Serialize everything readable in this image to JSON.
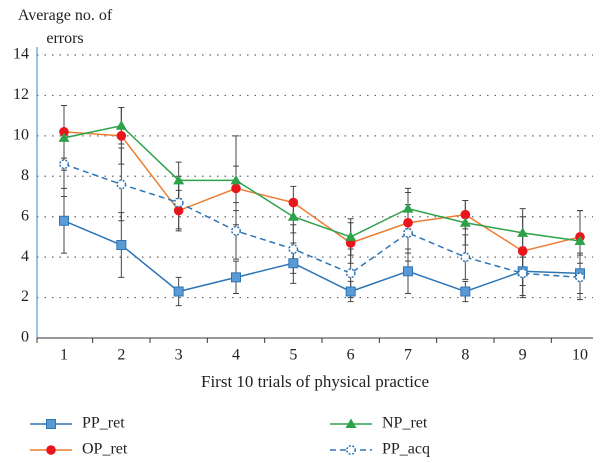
{
  "chart_data": {
    "type": "line",
    "y_label": "Average no. of errors",
    "x_label": "First 10 trials of physical practice",
    "categories": [
      "1",
      "2",
      "3",
      "4",
      "5",
      "6",
      "7",
      "8",
      "9",
      "10"
    ],
    "ylim": [
      0,
      14
    ],
    "yticks": [
      0,
      2,
      4,
      6,
      8,
      10,
      12,
      14
    ],
    "grid": true,
    "series": [
      {
        "name": "PP_ret",
        "color": "#2e75b6",
        "marker": "square",
        "dash": false,
        "values": [
          5.8,
          4.6,
          2.3,
          3.0,
          3.7,
          2.3,
          3.3,
          2.3,
          3.3,
          3.2
        ],
        "errors": [
          1.6,
          1.6,
          0.7,
          0.8,
          1.0,
          0.5,
          1.1,
          0.5,
          1.2,
          1.0
        ]
      },
      {
        "name": "OP_ret",
        "color": "#ed7d31",
        "marker": "circle",
        "dash": false,
        "values": [
          10.2,
          10.0,
          6.3,
          7.4,
          6.7,
          4.7,
          5.7,
          6.1,
          4.3,
          5.0
        ],
        "errors": [
          1.3,
          1.4,
          1.0,
          1.1,
          0.8,
          1.0,
          1.5,
          0.7,
          1.7,
          1.3
        ]
      },
      {
        "name": "NP_ret",
        "color": "#2ea24a",
        "marker": "triangle",
        "dash": false,
        "values": [
          9.9,
          10.5,
          7.8,
          7.8,
          6.0,
          5.0,
          6.4,
          5.7,
          5.2,
          4.8
        ],
        "errors": [
          1.6,
          0.9,
          0.9,
          2.2,
          0.8,
          0.9,
          1.0,
          1.1,
          1.2,
          1.5
        ]
      },
      {
        "name": "PP_acq",
        "color": "#2e75b6",
        "marker": "open-circle",
        "dash": true,
        "values": [
          8.6,
          7.6,
          6.7,
          5.3,
          4.4,
          3.2,
          5.2,
          4.0,
          3.2,
          3.0
        ],
        "errors": [
          1.6,
          1.8,
          1.3,
          1.4,
          1.2,
          1.2,
          1.4,
          1.1,
          1.2,
          1.1
        ]
      }
    ]
  }
}
